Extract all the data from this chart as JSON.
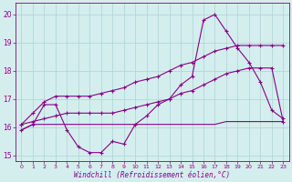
{
  "xlabel": "Windchill (Refroidissement éolien,°C)",
  "bg_color": "#d4eeed",
  "grid_color": "#aad4d4",
  "line_color": "#880088",
  "x": [
    0,
    1,
    2,
    3,
    4,
    5,
    6,
    7,
    8,
    9,
    10,
    11,
    12,
    13,
    14,
    15,
    16,
    17,
    18,
    19,
    20,
    21,
    22,
    23
  ],
  "line1": [
    15.9,
    16.1,
    16.8,
    16.8,
    15.9,
    15.3,
    15.1,
    15.1,
    15.5,
    15.4,
    16.1,
    16.4,
    16.8,
    17.0,
    17.5,
    17.8,
    19.8,
    20.0,
    19.4,
    18.8,
    18.3,
    17.6,
    16.6,
    16.3
  ],
  "line2": [
    16.1,
    16.5,
    16.9,
    17.1,
    17.1,
    17.1,
    17.1,
    17.2,
    17.3,
    17.4,
    17.6,
    17.7,
    17.8,
    18.0,
    18.2,
    18.3,
    18.5,
    18.7,
    18.8,
    18.9,
    18.9,
    18.9,
    18.9,
    18.9
  ],
  "line3": [
    16.1,
    16.2,
    16.3,
    16.4,
    16.5,
    16.5,
    16.5,
    16.5,
    16.5,
    16.6,
    16.7,
    16.8,
    16.9,
    17.0,
    17.2,
    17.3,
    17.5,
    17.7,
    17.9,
    18.0,
    18.1,
    18.1,
    18.1,
    16.2
  ],
  "line4": [
    15.9,
    16.1,
    16.1,
    16.1,
    16.1,
    16.1,
    16.1,
    16.1,
    16.1,
    16.1,
    16.1,
    16.1,
    16.1,
    16.1,
    16.1,
    16.1,
    16.1,
    16.1,
    16.2,
    16.2,
    16.2,
    16.2,
    16.2,
    16.2
  ],
  "ylim": [
    14.8,
    20.4
  ],
  "yticks": [
    15,
    16,
    17,
    18,
    19,
    20
  ],
  "xticks": [
    0,
    1,
    2,
    3,
    4,
    5,
    6,
    7,
    8,
    9,
    10,
    11,
    12,
    13,
    14,
    15,
    16,
    17,
    18,
    19,
    20,
    21,
    22,
    23
  ]
}
